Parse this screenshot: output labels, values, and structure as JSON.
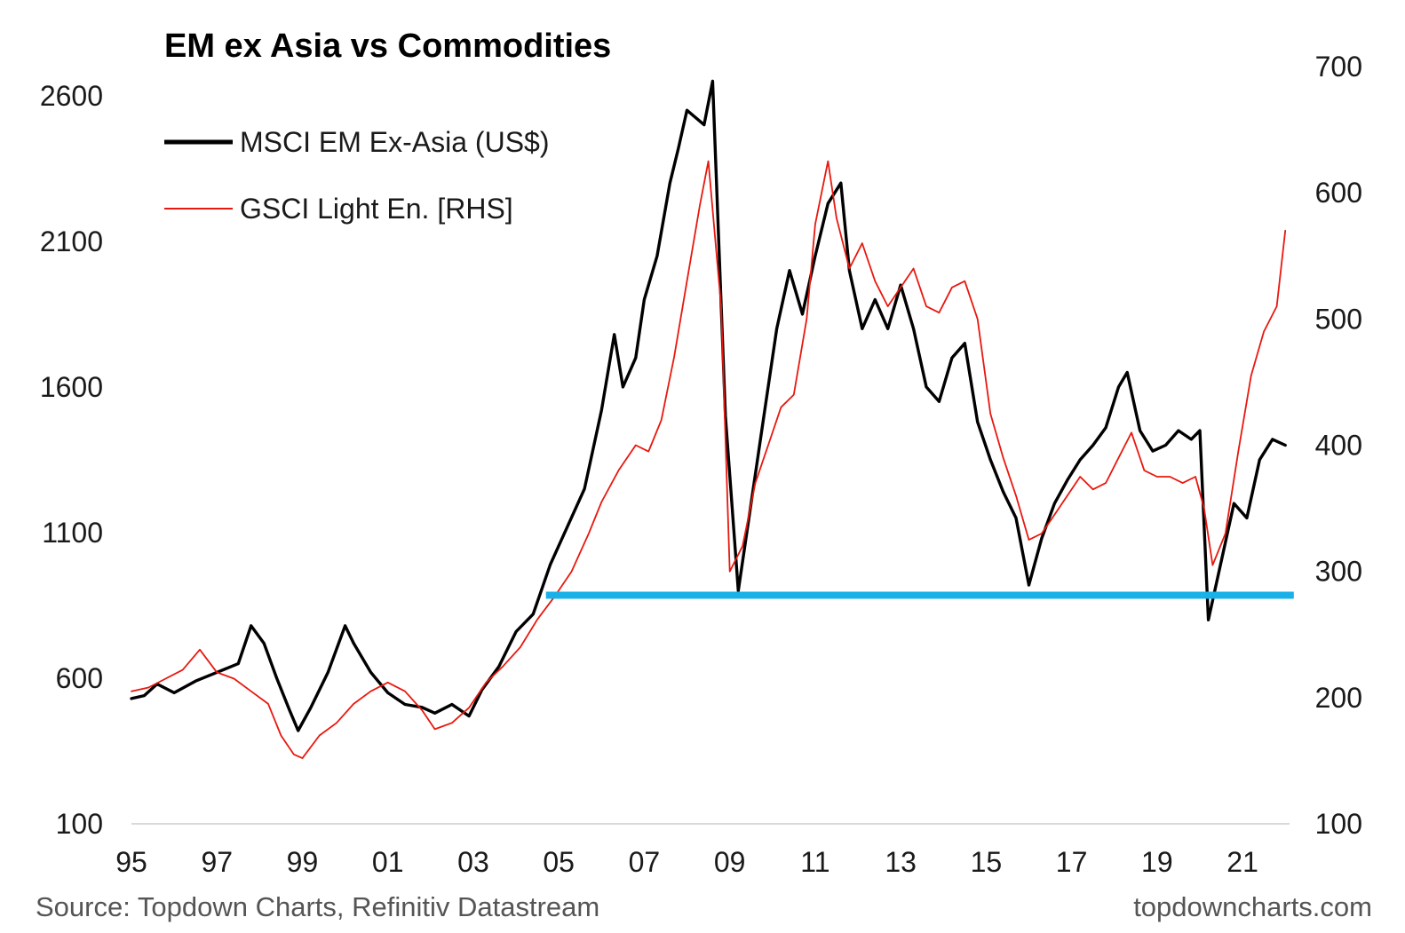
{
  "chart_data": {
    "type": "line",
    "title": "EM ex Asia vs Commodities",
    "x_ticks": [
      "95",
      "97",
      "99",
      "01",
      "03",
      "05",
      "07",
      "09",
      "11",
      "13",
      "15",
      "17",
      "19",
      "21"
    ],
    "x_range": [
      1995,
      2022.1
    ],
    "y_left": {
      "ticks": [
        "100",
        "600",
        "1100",
        "1600",
        "2100",
        "2600"
      ],
      "range": [
        100,
        2700
      ]
    },
    "y_right": {
      "ticks": [
        "100",
        "200",
        "300",
        "400",
        "500",
        "600",
        "700"
      ],
      "range": [
        100,
        700
      ]
    },
    "grid": false,
    "legend_placement": "top-left",
    "series": [
      {
        "name": "MSCI EM Ex-Asia (US$)",
        "axis": "left",
        "color": "#000000",
        "x": [
          1995.0,
          1995.3,
          1995.6,
          1996.0,
          1996.5,
          1997.0,
          1997.5,
          1997.8,
          1998.1,
          1998.4,
          1998.7,
          1998.9,
          1999.2,
          1999.6,
          2000.0,
          2000.2,
          2000.6,
          2001.0,
          2001.4,
          2001.8,
          2002.1,
          2002.5,
          2002.9,
          2003.2,
          2003.6,
          2004.0,
          2004.4,
          2004.8,
          2005.2,
          2005.6,
          2006.0,
          2006.3,
          2006.5,
          2006.8,
          2007.0,
          2007.3,
          2007.6,
          2007.8,
          2008.0,
          2008.4,
          2008.6,
          2008.9,
          2009.2,
          2009.5,
          2009.8,
          2010.1,
          2010.4,
          2010.7,
          2011.0,
          2011.3,
          2011.6,
          2011.8,
          2012.1,
          2012.4,
          2012.7,
          2013.0,
          2013.3,
          2013.6,
          2013.9,
          2014.2,
          2014.5,
          2014.8,
          2015.1,
          2015.4,
          2015.7,
          2016.0,
          2016.3,
          2016.6,
          2016.9,
          2017.2,
          2017.5,
          2017.8,
          2018.1,
          2018.3,
          2018.6,
          2018.9,
          2019.2,
          2019.5,
          2019.8,
          2020.0,
          2020.2,
          2020.5,
          2020.8,
          2021.1,
          2021.4,
          2021.7,
          2022.0
        ],
        "y": [
          530,
          540,
          580,
          550,
          590,
          620,
          650,
          780,
          720,
          600,
          490,
          420,
          500,
          620,
          780,
          720,
          620,
          550,
          510,
          500,
          480,
          510,
          470,
          560,
          640,
          760,
          820,
          990,
          1120,
          1250,
          1520,
          1780,
          1600,
          1700,
          1900,
          2050,
          2300,
          2420,
          2550,
          2500,
          2650,
          1500,
          900,
          1200,
          1500,
          1800,
          2000,
          1850,
          2050,
          2230,
          2300,
          2000,
          1800,
          1900,
          1800,
          1950,
          1800,
          1600,
          1550,
          1700,
          1750,
          1480,
          1350,
          1240,
          1150,
          920,
          1080,
          1200,
          1280,
          1350,
          1400,
          1460,
          1600,
          1650,
          1450,
          1380,
          1400,
          1450,
          1420,
          1450,
          800,
          1000,
          1200,
          1150,
          1350,
          1420,
          1400
        ]
      },
      {
        "name": "GSCI Light En. [RHS]",
        "axis": "right",
        "color": "#e8180e",
        "x": [
          1995.0,
          1995.4,
          1995.8,
          1996.2,
          1996.6,
          1997.0,
          1997.4,
          1997.8,
          1998.2,
          1998.5,
          1998.8,
          1999.0,
          1999.4,
          1999.8,
          2000.2,
          2000.6,
          2001.0,
          2001.4,
          2001.8,
          2002.1,
          2002.5,
          2002.9,
          2003.3,
          2003.7,
          2004.1,
          2004.5,
          2004.9,
          2005.3,
          2005.7,
          2006.0,
          2006.4,
          2006.8,
          2007.1,
          2007.4,
          2007.7,
          2008.0,
          2008.3,
          2008.5,
          2008.8,
          2009.0,
          2009.3,
          2009.6,
          2009.9,
          2010.2,
          2010.5,
          2010.8,
          2011.0,
          2011.3,
          2011.5,
          2011.8,
          2012.1,
          2012.4,
          2012.7,
          2013.0,
          2013.3,
          2013.6,
          2013.9,
          2014.2,
          2014.5,
          2014.8,
          2015.1,
          2015.4,
          2015.7,
          2016.0,
          2016.3,
          2016.6,
          2016.9,
          2017.2,
          2017.5,
          2017.8,
          2018.1,
          2018.4,
          2018.7,
          2019.0,
          2019.3,
          2019.6,
          2019.9,
          2020.1,
          2020.3,
          2020.6,
          2020.9,
          2021.2,
          2021.5,
          2021.8,
          2022.0
        ],
        "y": [
          205,
          208,
          215,
          222,
          238,
          220,
          215,
          205,
          195,
          170,
          155,
          152,
          170,
          180,
          195,
          205,
          212,
          205,
          190,
          175,
          180,
          192,
          212,
          225,
          240,
          262,
          280,
          300,
          330,
          355,
          380,
          400,
          395,
          420,
          470,
          530,
          590,
          625,
          510,
          300,
          320,
          370,
          400,
          430,
          440,
          500,
          575,
          625,
          580,
          540,
          560,
          530,
          510,
          525,
          540,
          510,
          505,
          525,
          530,
          500,
          425,
          390,
          360,
          325,
          330,
          345,
          360,
          375,
          365,
          370,
          390,
          410,
          380,
          375,
          375,
          370,
          375,
          350,
          305,
          330,
          395,
          455,
          490,
          510,
          570
        ]
      }
    ],
    "reference_line": {
      "axis": "left",
      "value": 885,
      "x_start": 2004.7,
      "x_end": 2022.2,
      "color": "#1ab0e8"
    },
    "source": "Source: Topdown Charts, Refinitiv Datastream",
    "credit": "topdowncharts.com"
  }
}
